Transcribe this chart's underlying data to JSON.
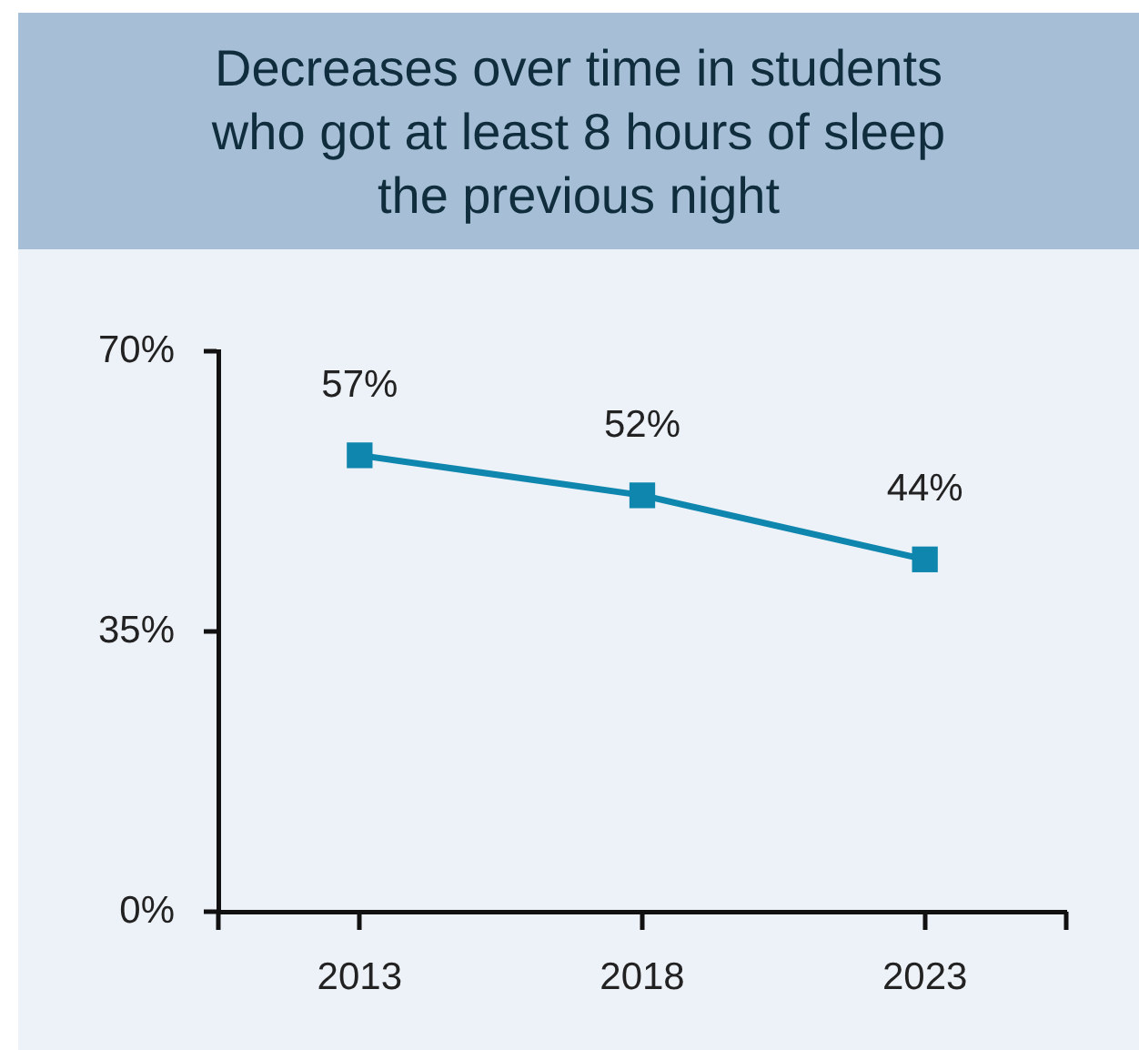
{
  "chart_data": {
    "type": "line",
    "title": "Decreases over time in students who got at least 8 hours of sleep the previous night",
    "categories": [
      "2013",
      "2018",
      "2023"
    ],
    "series": [
      {
        "color": "#0e86ae",
        "values": [
          57,
          52,
          44
        ],
        "value_labels": [
          "57%",
          "52%",
          "44%"
        ]
      }
    ],
    "ylim": [
      0,
      70
    ],
    "yticks": [
      {
        "value": 0,
        "label": "0%"
      },
      {
        "value": 35,
        "label": "35%"
      },
      {
        "value": 70,
        "label": "70%"
      }
    ],
    "grid": false,
    "legend": false,
    "marker": "square",
    "line_style": "solid"
  }
}
